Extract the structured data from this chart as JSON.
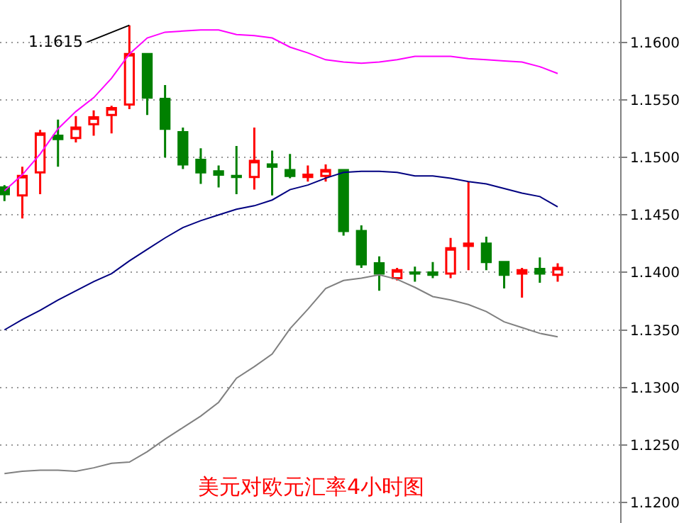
{
  "chart_data": {
    "type": "candlestick",
    "title": "美元对欧元汇率4小时图",
    "categories": [
      null,
      null,
      null,
      null,
      null,
      null,
      null,
      null,
      null,
      null,
      null,
      null,
      null,
      null,
      null,
      null,
      null,
      null,
      null,
      null,
      null,
      null,
      null,
      null,
      null,
      null,
      null,
      null,
      null,
      null,
      null,
      null
    ],
    "ohlc": [
      [
        1.1474,
        1.1476,
        1.1462,
        1.1468
      ],
      [
        1.1467,
        1.1492,
        1.1447,
        1.1484
      ],
      [
        1.1487,
        1.1524,
        1.1468,
        1.1521
      ],
      [
        1.1519,
        1.1533,
        1.1492,
        1.1516
      ],
      [
        1.1517,
        1.1536,
        1.1513,
        1.1526
      ],
      [
        1.1529,
        1.1541,
        1.1519,
        1.1535
      ],
      [
        1.1537,
        1.1545,
        1.1521,
        1.1543
      ],
      [
        1.1546,
        1.1615,
        1.1542,
        1.159
      ],
      [
        1.159,
        1.159,
        1.1537,
        1.1552
      ],
      [
        1.1551,
        1.1563,
        1.15,
        1.1525
      ],
      [
        1.1522,
        1.1526,
        1.149,
        1.1494
      ],
      [
        1.1498,
        1.1508,
        1.1477,
        1.1487
      ],
      [
        1.1488,
        1.1493,
        1.1474,
        1.1485
      ],
      [
        1.1484,
        1.151,
        1.1468,
        1.1483
      ],
      [
        1.1483,
        1.1526,
        1.1472,
        1.1497
      ],
      [
        1.1494,
        1.1506,
        1.1467,
        1.1492
      ],
      [
        1.1489,
        1.1503,
        1.1482,
        1.1484
      ],
      [
        1.1483,
        1.1493,
        1.1479,
        1.1485
      ],
      [
        1.1484,
        1.1494,
        1.1479,
        1.1489
      ],
      [
        1.1489,
        1.149,
        1.1432,
        1.1436
      ],
      [
        1.1436,
        1.1441,
        1.1404,
        1.1407
      ],
      [
        1.1408,
        1.1414,
        1.1384,
        1.1399
      ],
      [
        1.1395,
        1.1404,
        1.1393,
        1.1402
      ],
      [
        1.14,
        1.1405,
        1.1392,
        1.1399
      ],
      [
        1.14,
        1.1409,
        1.1395,
        1.1398
      ],
      [
        1.1399,
        1.143,
        1.1395,
        1.1421
      ],
      [
        1.1423,
        1.1479,
        1.1402,
        1.1425
      ],
      [
        1.1425,
        1.1431,
        1.1402,
        1.1409
      ],
      [
        1.1409,
        1.141,
        1.1386,
        1.1398
      ],
      [
        1.1399,
        1.1404,
        1.1378,
        1.1402
      ],
      [
        1.1403,
        1.1413,
        1.1391,
        1.1399
      ],
      [
        1.1398,
        1.1408,
        1.1392,
        1.1404
      ]
    ],
    "colors": [
      "#008000",
      "#ff0000",
      "#ff0000",
      "#008000",
      "#ff0000",
      "#ff0000",
      "#ff0000",
      "#ff0000",
      "#008000",
      "#008000",
      "#008000",
      "#008000",
      "#008000",
      "#008000",
      "#ff0000",
      "#008000",
      "#008000",
      "#ff0000",
      "#ff0000",
      "#008000",
      "#008000",
      "#008000",
      "#ff0000",
      "#008000",
      "#008000",
      "#ff0000",
      "#ff0000",
      "#008000",
      "#008000",
      "#ff0000",
      "#008000",
      "#ff0000"
    ],
    "series": [
      {
        "type": "line",
        "color": "#ff00ff",
        "values": [
          1.1471,
          1.1485,
          1.1503,
          1.1525,
          1.154,
          1.1552,
          1.1569,
          1.159,
          1.1604,
          1.1609,
          1.161,
          1.1611,
          1.1611,
          1.1607,
          1.1606,
          1.1604,
          1.1596,
          1.1591,
          1.1585,
          1.1583,
          1.1582,
          1.1583,
          1.1585,
          1.1588,
          1.1588,
          1.1588,
          1.1586,
          1.1585,
          1.1584,
          1.1583,
          1.1579,
          1.1573
        ]
      },
      {
        "type": "line",
        "color": "#000080",
        "values": [
          1.135,
          1.1359,
          1.1367,
          1.1376,
          1.1384,
          1.1392,
          1.1399,
          1.141,
          1.142,
          1.143,
          1.1439,
          1.1445,
          1.145,
          1.1455,
          1.1458,
          1.1463,
          1.1472,
          1.1476,
          1.1482,
          1.1487,
          1.1488,
          1.1488,
          1.1487,
          1.1484,
          1.1484,
          1.1482,
          1.1479,
          1.1477,
          1.1473,
          1.1469,
          1.1466,
          1.1457
        ]
      },
      {
        "type": "line",
        "color": "#808080",
        "values": [
          1.1225,
          1.1227,
          1.1228,
          1.1228,
          1.1227,
          1.123,
          1.1234,
          1.1235,
          1.1244,
          1.1255,
          1.1265,
          1.1275,
          1.1287,
          1.1308,
          1.1318,
          1.1329,
          1.1351,
          1.1368,
          1.1386,
          1.1393,
          1.1395,
          1.1398,
          1.1394,
          1.1387,
          1.1379,
          1.1376,
          1.1372,
          1.1366,
          1.1357,
          1.1352,
          1.1347,
          1.1344
        ]
      }
    ],
    "annotations": [
      "1.1615"
    ],
    "ylim": [
      1.1182,
      1.1637
    ],
    "yticks": [
      {
        "value": 1.12,
        "label": "1.1200"
      },
      {
        "value": 1.125,
        "label": "1.1250"
      },
      {
        "value": 1.13,
        "label": "1.1300"
      },
      {
        "value": 1.135,
        "label": "1.1350"
      },
      {
        "value": 1.14,
        "label": "1.1400"
      },
      {
        "value": 1.145,
        "label": "1.1450"
      },
      {
        "value": 1.15,
        "label": "1.1500"
      },
      {
        "value": 1.155,
        "label": "1.1550"
      },
      {
        "value": 1.16,
        "label": "1.1600"
      }
    ],
    "grid": "y",
    "tick_labels": "y"
  }
}
